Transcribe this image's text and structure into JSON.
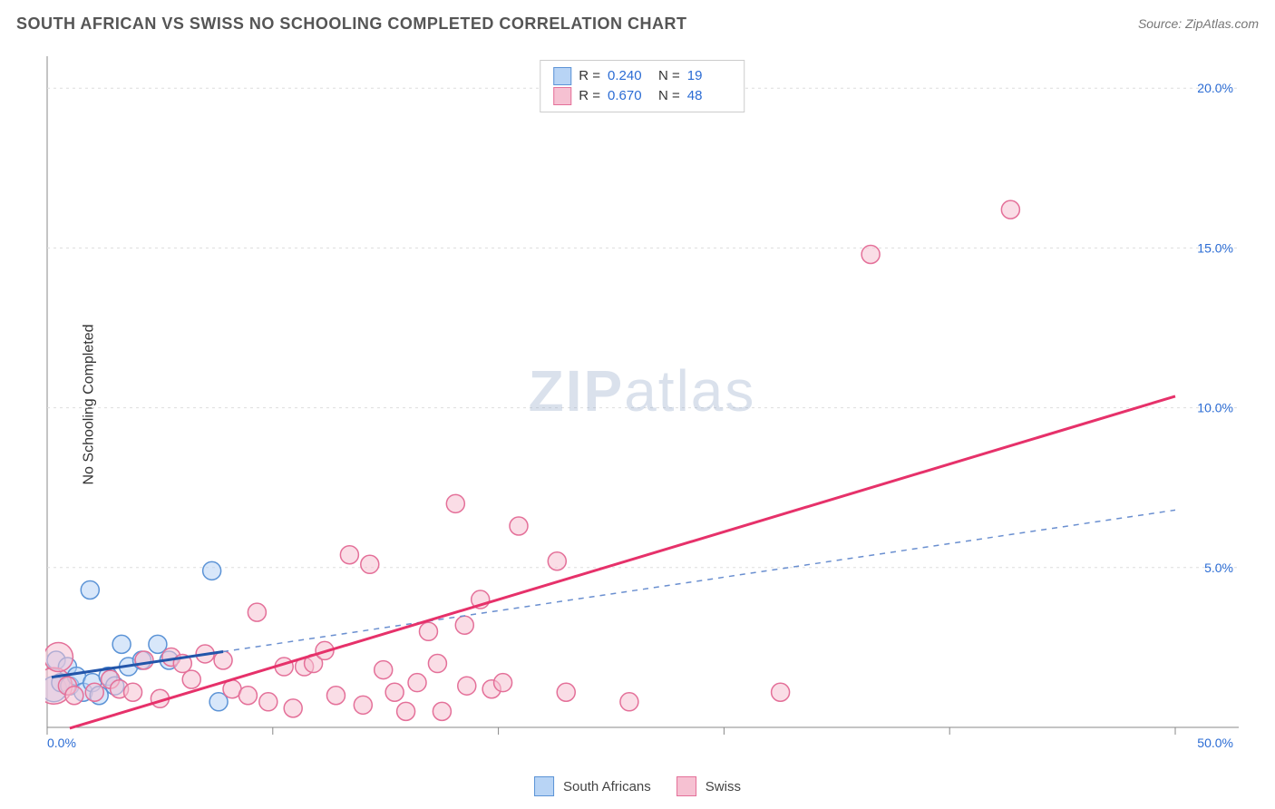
{
  "title": "SOUTH AFRICAN VS SWISS NO SCHOOLING COMPLETED CORRELATION CHART",
  "source_label": "Source:",
  "source_value": "ZipAtlas.com",
  "y_axis_label": "No Schooling Completed",
  "watermark_a": "ZIP",
  "watermark_b": "atlas",
  "chart": {
    "type": "scatter",
    "background_color": "#ffffff",
    "grid_color": "#dddddd",
    "axis_color": "#888888",
    "tick_label_color": "#2b6cd4",
    "xlim": [
      0,
      50
    ],
    "ylim": [
      0,
      21
    ],
    "x_ticks": [
      0,
      10,
      20,
      30,
      40,
      50
    ],
    "x_tick_labels": [
      "0.0%",
      "",
      "",
      "",
      "",
      "50.0%"
    ],
    "y_ticks": [
      5,
      10,
      15,
      20
    ],
    "y_tick_labels": [
      "5.0%",
      "10.0%",
      "15.0%",
      "20.0%"
    ],
    "marker_radius": 10,
    "series": [
      {
        "key": "south_africans",
        "label": "South Africans",
        "fill": "#b8d4f5",
        "stroke": "#5b93d6",
        "fill_opacity": 0.55,
        "line_color": "#2255aa",
        "line_width": 3,
        "line_dash": null,
        "line_extent": [
          0.2,
          7.8
        ],
        "dash_color": "#6a8fd0",
        "dash_width": 1.5,
        "dash_pattern": "6,6",
        "dash_extent": [
          7.8,
          50
        ],
        "R": "0.240",
        "N": "19",
        "reg_intercept": 1.55,
        "reg_slope": 0.105,
        "points": [
          {
            "x": 0.3,
            "y": 1.2,
            "r": 14
          },
          {
            "x": 0.4,
            "y": 2.1
          },
          {
            "x": 0.6,
            "y": 1.4
          },
          {
            "x": 0.9,
            "y": 1.9
          },
          {
            "x": 1.0,
            "y": 1.3
          },
          {
            "x": 1.3,
            "y": 1.6
          },
          {
            "x": 1.6,
            "y": 1.1
          },
          {
            "x": 1.9,
            "y": 4.3
          },
          {
            "x": 2.0,
            "y": 1.4
          },
          {
            "x": 2.3,
            "y": 1.0
          },
          {
            "x": 2.7,
            "y": 1.6
          },
          {
            "x": 3.0,
            "y": 1.3
          },
          {
            "x": 3.3,
            "y": 2.6
          },
          {
            "x": 3.6,
            "y": 1.9
          },
          {
            "x": 4.2,
            "y": 2.1
          },
          {
            "x": 4.9,
            "y": 2.6
          },
          {
            "x": 5.4,
            "y": 2.1
          },
          {
            "x": 7.3,
            "y": 4.9
          },
          {
            "x": 7.6,
            "y": 0.8
          }
        ]
      },
      {
        "key": "swiss",
        "label": "Swiss",
        "fill": "#f6c1d2",
        "stroke": "#e47099",
        "fill_opacity": 0.55,
        "line_color": "#e6316a",
        "line_width": 3,
        "line_dash": null,
        "line_extent": [
          1.0,
          50
        ],
        "R": "0.670",
        "N": "48",
        "reg_intercept": -0.24,
        "reg_slope": 0.212,
        "points": [
          {
            "x": 0.3,
            "y": 1.3,
            "r": 20
          },
          {
            "x": 0.5,
            "y": 2.2,
            "r": 16
          },
          {
            "x": 0.9,
            "y": 1.3
          },
          {
            "x": 1.2,
            "y": 1.0
          },
          {
            "x": 2.1,
            "y": 1.1
          },
          {
            "x": 2.8,
            "y": 1.5
          },
          {
            "x": 3.2,
            "y": 1.2
          },
          {
            "x": 3.8,
            "y": 1.1
          },
          {
            "x": 4.3,
            "y": 2.1
          },
          {
            "x": 5.0,
            "y": 0.9
          },
          {
            "x": 5.5,
            "y": 2.2
          },
          {
            "x": 6.0,
            "y": 2.0
          },
          {
            "x": 6.4,
            "y": 1.5
          },
          {
            "x": 7.0,
            "y": 2.3
          },
          {
            "x": 7.8,
            "y": 2.1
          },
          {
            "x": 8.2,
            "y": 1.2
          },
          {
            "x": 8.9,
            "y": 1.0
          },
          {
            "x": 9.3,
            "y": 3.6
          },
          {
            "x": 9.8,
            "y": 0.8
          },
          {
            "x": 10.5,
            "y": 1.9
          },
          {
            "x": 10.9,
            "y": 0.6
          },
          {
            "x": 11.4,
            "y": 1.9
          },
          {
            "x": 11.8,
            "y": 2.0
          },
          {
            "x": 12.3,
            "y": 2.4
          },
          {
            "x": 12.8,
            "y": 1.0
          },
          {
            "x": 13.4,
            "y": 5.4
          },
          {
            "x": 14.0,
            "y": 0.7
          },
          {
            "x": 14.3,
            "y": 5.1
          },
          {
            "x": 14.9,
            "y": 1.8
          },
          {
            "x": 15.4,
            "y": 1.1
          },
          {
            "x": 15.9,
            "y": 0.5
          },
          {
            "x": 16.4,
            "y": 1.4
          },
          {
            "x": 16.9,
            "y": 3.0
          },
          {
            "x": 17.3,
            "y": 2.0
          },
          {
            "x": 17.5,
            "y": 0.5
          },
          {
            "x": 18.1,
            "y": 7.0
          },
          {
            "x": 18.5,
            "y": 3.2
          },
          {
            "x": 18.6,
            "y": 1.3
          },
          {
            "x": 19.2,
            "y": 4.0
          },
          {
            "x": 19.7,
            "y": 1.2
          },
          {
            "x": 20.2,
            "y": 1.4
          },
          {
            "x": 20.9,
            "y": 6.3
          },
          {
            "x": 22.6,
            "y": 5.2
          },
          {
            "x": 23.0,
            "y": 1.1
          },
          {
            "x": 25.8,
            "y": 0.8
          },
          {
            "x": 32.5,
            "y": 1.1
          },
          {
            "x": 36.5,
            "y": 14.8
          },
          {
            "x": 42.7,
            "y": 16.2
          }
        ]
      }
    ]
  },
  "legend_top": {
    "r_label": "R =",
    "n_label": "N ="
  },
  "legend_bottom": {}
}
